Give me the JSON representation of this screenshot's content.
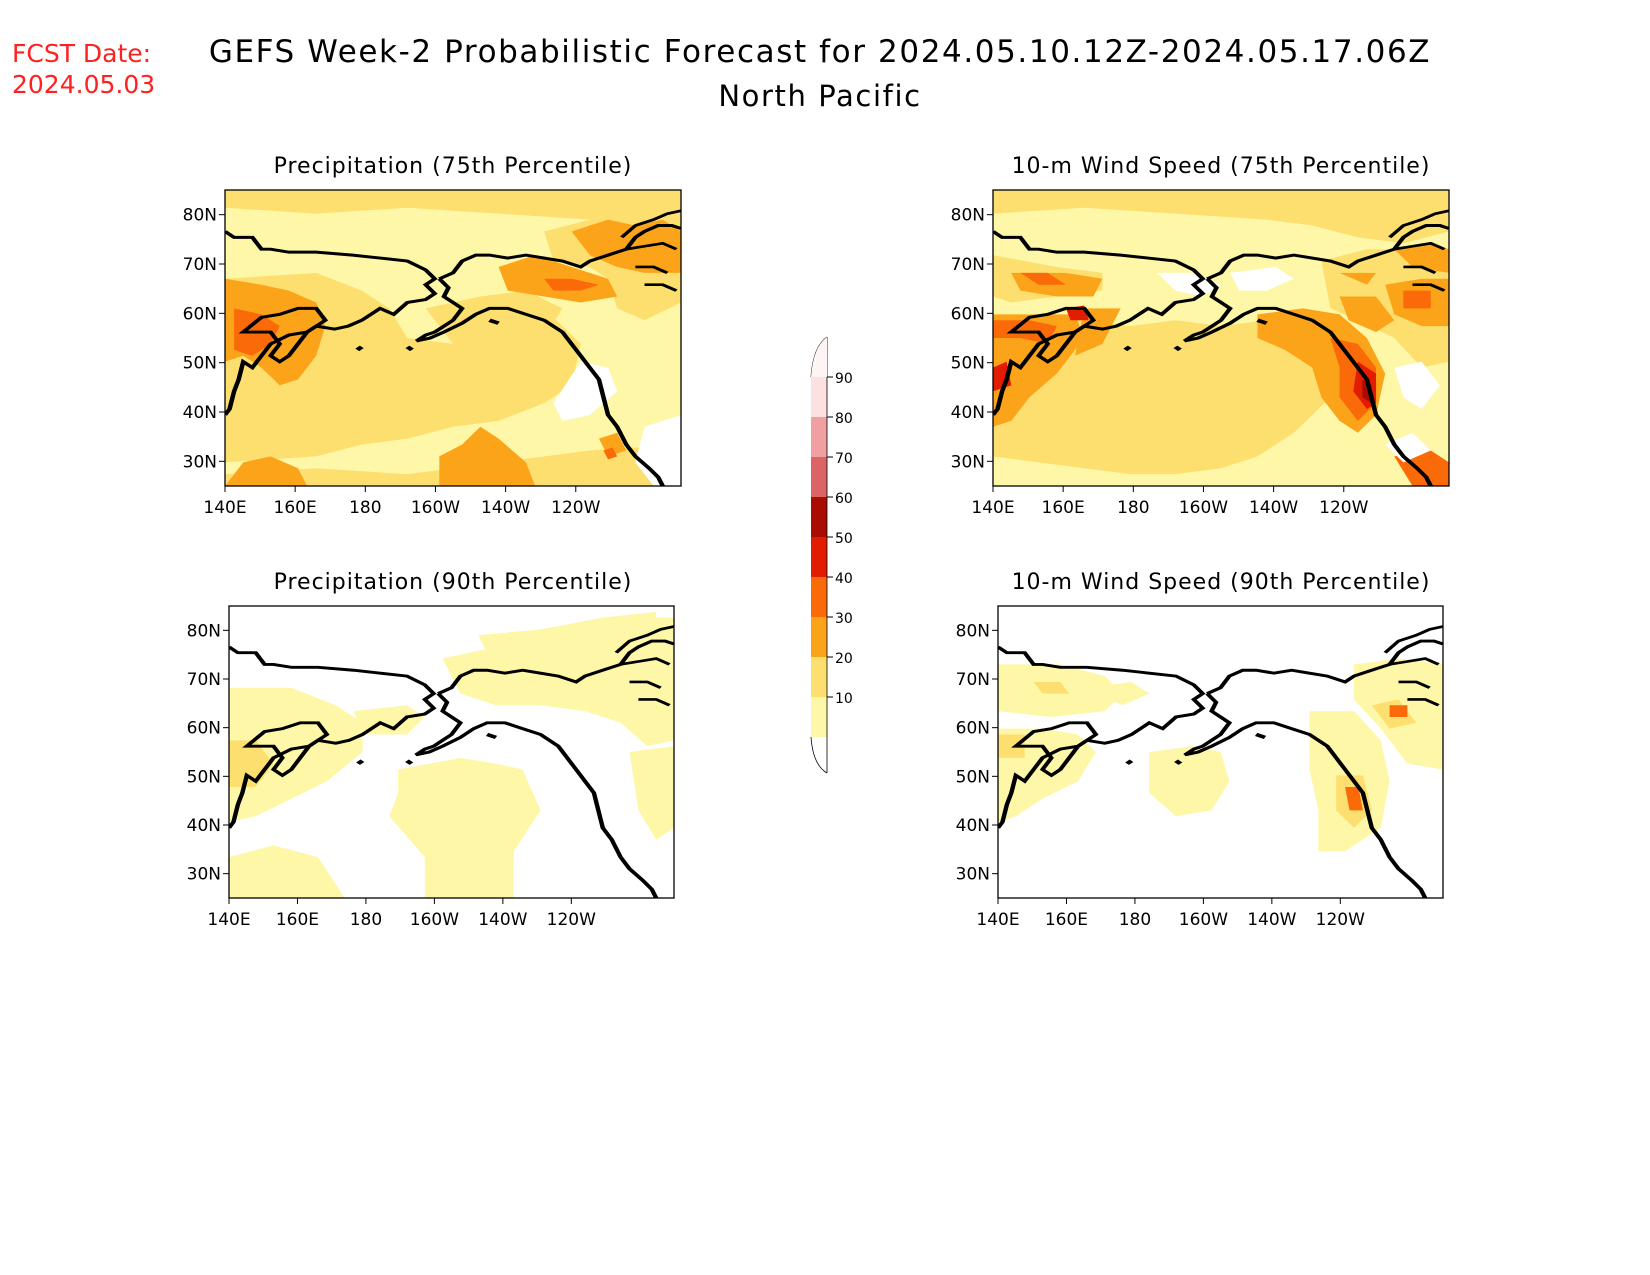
{
  "header": {
    "fcst_label": "FCST Date:",
    "fcst_date": "2024.05.03",
    "title_line1": "GEFS Week-2 Probabilistic Forecast for 2024.05.10.12Z-2024.05.17.06Z",
    "title_line2": "North Pacific",
    "fcst_color": "#ff2020"
  },
  "axes": {
    "lon_ticks": [
      "140E",
      "160E",
      "180",
      "160W",
      "140W",
      "120W"
    ],
    "lat_ticks": [
      "80N",
      "70N",
      "60N",
      "50N",
      "40N",
      "30N"
    ]
  },
  "panels": [
    {
      "id": "precip75",
      "title": "Precipitation (75th Percentile)",
      "variable": "precipitation",
      "percentile": 75
    },
    {
      "id": "wind75",
      "title": "10-m Wind Speed (75th Percentile)",
      "variable": "wind",
      "percentile": 75
    },
    {
      "id": "precip90",
      "title": "Precipitation (90th Percentile)",
      "variable": "precipitation",
      "percentile": 90
    },
    {
      "id": "wind90",
      "title": "10-m Wind Speed (90th Percentile)",
      "variable": "wind",
      "percentile": 90
    }
  ],
  "colorbar": {
    "levels": [
      "10",
      "20",
      "30",
      "40",
      "50",
      "60",
      "70",
      "80",
      "90"
    ],
    "colors": [
      "#fff7a8",
      "#fddf70",
      "#fca419",
      "#fa6a09",
      "#e21c00",
      "#a90c00",
      "#dc6464",
      "#f0a0a0",
      "#fde0e0"
    ]
  },
  "land_color": "#ffffff"
}
